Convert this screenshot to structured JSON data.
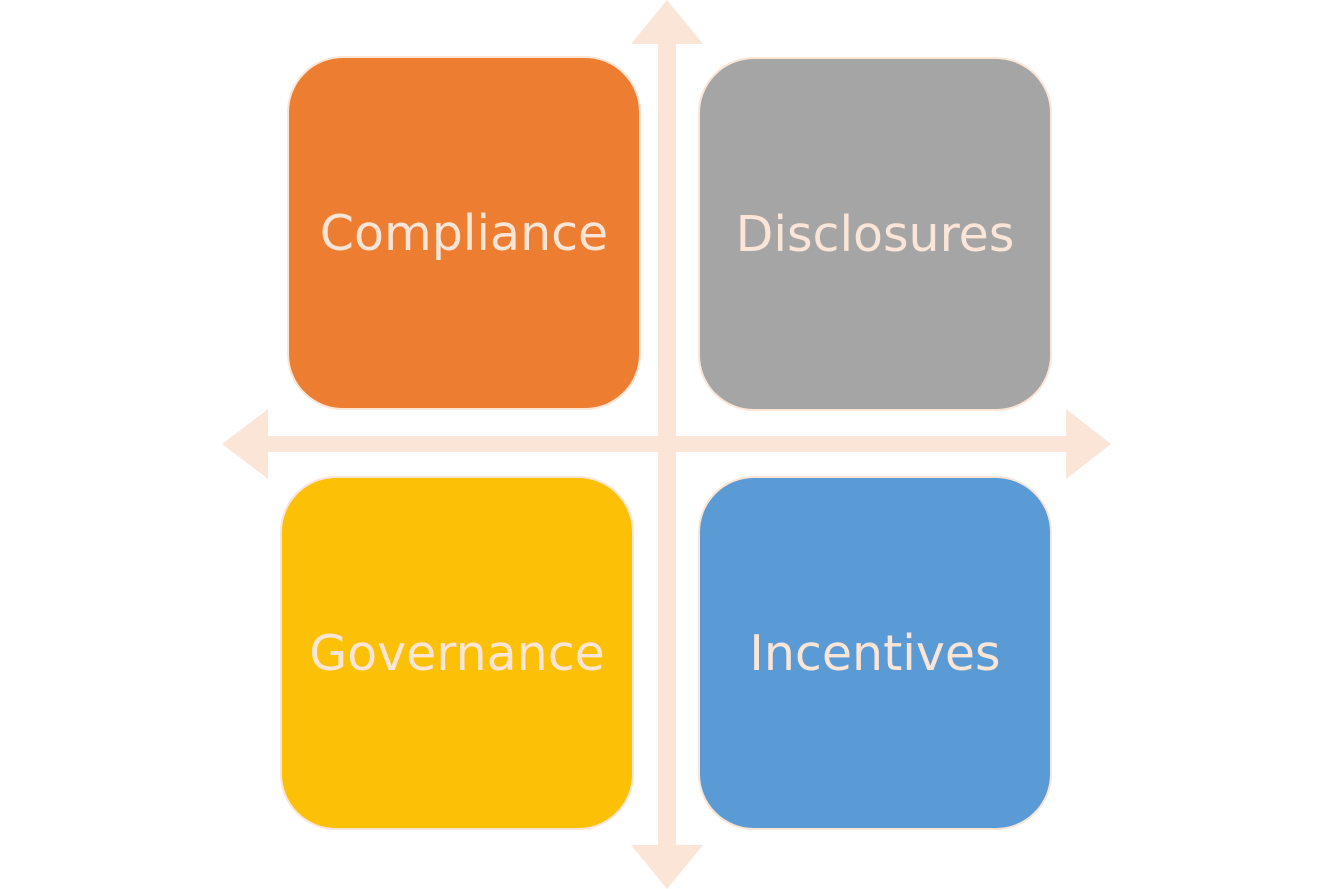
{
  "colors": {
    "axis": "#fbe5d6",
    "label_text": "#fbe5d6"
  },
  "quadrants": [
    {
      "label": "Compliance",
      "color": "#ed7d31"
    },
    {
      "label": "Disclosures",
      "color": "#a5a5a5"
    },
    {
      "label": "Governance",
      "color": "#fcc006"
    },
    {
      "label": "Incentives",
      "color": "#5b9bd5"
    }
  ]
}
